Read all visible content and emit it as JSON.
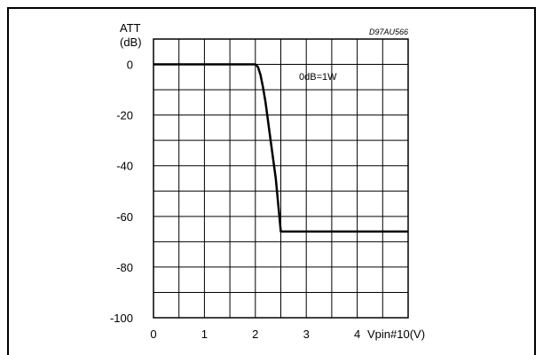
{
  "chart_data": {
    "type": "line",
    "reference_code": "D97AU566",
    "ylabel_line1": "ATT",
    "ylabel_line2": "(dB)",
    "xlabel": "Vpin#10(V)",
    "annotation": "0dB=1W",
    "xlim": [
      0,
      5
    ],
    "ylim": [
      -100,
      10
    ],
    "grid": true,
    "x_ticks": [
      {
        "value": 0,
        "label": "0"
      },
      {
        "value": 1,
        "label": "1"
      },
      {
        "value": 2,
        "label": "2"
      },
      {
        "value": 3,
        "label": "3"
      },
      {
        "value": 4,
        "label": "4"
      }
    ],
    "y_ticks": [
      {
        "value": 0,
        "label": "0"
      },
      {
        "value": -20,
        "label": "-20"
      },
      {
        "value": -40,
        "label": "-40"
      },
      {
        "value": -60,
        "label": "-60"
      },
      {
        "value": -80,
        "label": "-80"
      },
      {
        "value": -100,
        "label": "-100"
      }
    ],
    "x_grid_step": 0.5,
    "y_grid_step": 10,
    "series": [
      {
        "color": "#000000",
        "x": [
          0,
          2.0,
          2.05,
          2.1,
          2.15,
          2.2,
          2.3,
          2.4,
          2.5,
          5.0
        ],
        "y": [
          0,
          0,
          -1,
          -4,
          -9,
          -15,
          -30,
          -45,
          -66,
          -66
        ]
      }
    ]
  }
}
